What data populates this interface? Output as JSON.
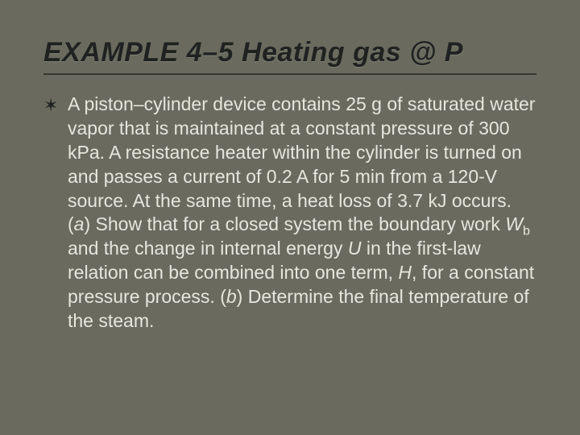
{
  "slide": {
    "background_color": "#6a6b5e",
    "title": {
      "text": "EXAMPLE 4–5 Heating gas @ P",
      "color": "#1f2220",
      "font_size_pt": 34,
      "font_weight": "bold",
      "font_style": "italic",
      "underline_color": "#1f2220"
    },
    "bullet": {
      "glyph": "✶",
      "glyph_color": "#1f2220",
      "text_color": "#e6e6de",
      "font_size_pt": 23,
      "segments": [
        {
          "t": "A piston–cylinder device contains 25 g of saturated water vapor that is maintained at a constant pressure of 300 kPa. A resistance heater within the cylinder is turned on and passes a current of 0.2 A for 5 min from a 120-V source. At the same time, a heat loss of 3.7 kJ occurs. ("
        },
        {
          "t": "a",
          "italic": true
        },
        {
          "t": ") Show that for a closed system the boundary work "
        },
        {
          "t": "W",
          "italic": true
        },
        {
          "t": "b",
          "sub": true
        },
        {
          "t": " and the change in internal energy "
        },
        {
          "t": "U",
          "italic": true
        },
        {
          "t": " in the first-law relation can be combined into one term, "
        },
        {
          "t": "H",
          "italic": true
        },
        {
          "t": ", for a constant pressure process. ("
        },
        {
          "t": "b",
          "italic": true
        },
        {
          "t": ") Determine the final temperature of the steam."
        }
      ]
    }
  }
}
